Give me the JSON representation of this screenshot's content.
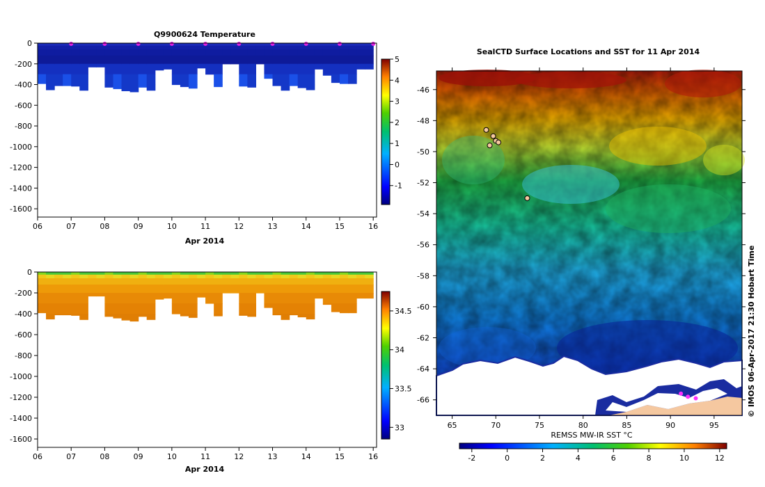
{
  "chart_data": [
    {
      "id": "temperature",
      "type": "heatmap",
      "title": "Q9900624  Temperature",
      "xlabel": "Apr 2014",
      "ylabel": "",
      "x_ticks": [
        "06",
        "07",
        "08",
        "09",
        "10",
        "11",
        "12",
        "13",
        "14",
        "15",
        "16"
      ],
      "x_range": [
        6,
        16.1
      ],
      "y_ticks": [
        0,
        -200,
        -400,
        -600,
        -800,
        -1000,
        -1200,
        -1400,
        -1600
      ],
      "ylim": [
        -1680,
        0
      ],
      "profile_times": [
        6.0,
        6.25,
        6.5,
        6.75,
        7.0,
        7.25,
        7.5,
        7.75,
        8.0,
        8.25,
        8.5,
        8.75,
        9.0,
        9.25,
        9.5,
        9.75,
        10.0,
        10.25,
        10.5,
        10.75,
        11.0,
        11.25,
        11.5,
        11.75,
        12.0,
        12.25,
        12.5,
        12.75,
        13.0,
        13.25,
        13.5,
        13.75,
        14.0,
        14.25,
        14.5,
        14.75,
        15.0,
        15.25,
        15.5,
        15.75
      ],
      "profile_max_depth": [
        -390,
        -450,
        -410,
        -410,
        -415,
        -455,
        -230,
        -230,
        -425,
        -440,
        -460,
        -470,
        -425,
        -455,
        -260,
        -250,
        -400,
        -420,
        -435,
        -240,
        -300,
        -420,
        -200,
        -200,
        -415,
        -425,
        -200,
        -340,
        -410,
        -455,
        -410,
        -430,
        -450,
        -250,
        -310,
        -380,
        -390,
        -390,
        -250,
        -250
      ],
      "profile_markers": [
        7,
        8,
        9,
        10,
        11,
        12,
        13,
        14,
        15,
        16
      ],
      "colorbar": {
        "ticks": [
          5,
          4,
          3,
          2,
          1,
          0,
          -1
        ],
        "range": [
          -1.9,
          5
        ]
      }
    },
    {
      "id": "salinity",
      "type": "heatmap",
      "title": "",
      "xlabel": "Apr 2014",
      "ylabel": "",
      "x_ticks": [
        "06",
        "07",
        "08",
        "09",
        "10",
        "11",
        "12",
        "13",
        "14",
        "15",
        "16"
      ],
      "x_range": [
        6,
        16.1
      ],
      "y_ticks": [
        0,
        -200,
        -400,
        -600,
        -800,
        -1000,
        -1200,
        -1400,
        -1600
      ],
      "ylim": [
        -1680,
        0
      ],
      "colorbar": {
        "ticks": [
          34.5,
          34,
          33.5,
          33
        ],
        "range": [
          32.85,
          34.75
        ]
      }
    },
    {
      "id": "sst_map",
      "type": "heatmap",
      "title": "SealCTD Surface Locations and SST for 11 Apr 2014",
      "xlabel": "",
      "ylabel": "",
      "x_ticks": [
        65,
        70,
        75,
        80,
        85,
        90,
        95
      ],
      "xlim": [
        63.2,
        98.2
      ],
      "y_ticks": [
        -46,
        -48,
        -50,
        -52,
        -54,
        -56,
        -58,
        -60,
        -62,
        -64,
        -66
      ],
      "ylim": [
        -67,
        -44.8
      ],
      "seal_positions": [
        [
          69.7,
          -49.0
        ],
        [
          70.0,
          -49.3
        ],
        [
          68.9,
          -48.6
        ],
        [
          70.3,
          -49.4
        ],
        [
          69.3,
          -49.6
        ],
        [
          73.6,
          -53.0
        ],
        [
          92.0,
          -65.8
        ],
        [
          91.2,
          -65.6
        ],
        [
          92.9,
          -65.9
        ]
      ],
      "colorbar": {
        "label": "REMSS MW-IR SST °C",
        "ticks": [
          -2,
          0,
          2,
          4,
          6,
          8,
          10,
          12
        ],
        "range": [
          -2.7,
          12.4
        ]
      },
      "credit": "© IMOS 06-Apr-2017 21:30 Hobart Time"
    }
  ]
}
